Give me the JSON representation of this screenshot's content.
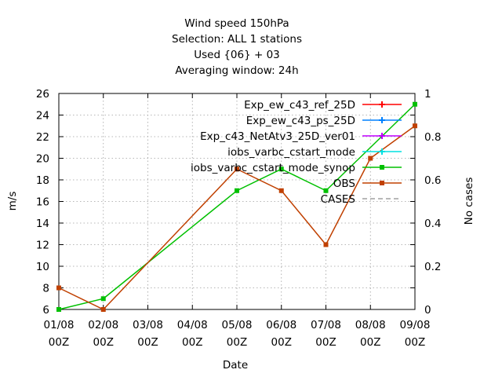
{
  "chart_data": {
    "type": "line",
    "title_lines": [
      "Wind speed 150hPa",
      "Selection: ALL      1 stations",
      "Used {06} + 03",
      "Averaging window: 24h"
    ],
    "xlabel": "Date",
    "ylabel": "m/s",
    "y2label": "No cases",
    "categories": [
      [
        "01/08",
        "00Z"
      ],
      [
        "02/08",
        "00Z"
      ],
      [
        "03/08",
        "00Z"
      ],
      [
        "04/08",
        "00Z"
      ],
      [
        "05/08",
        "00Z"
      ],
      [
        "06/08",
        "00Z"
      ],
      [
        "07/08",
        "00Z"
      ],
      [
        "08/08",
        "00Z"
      ],
      [
        "09/08",
        "00Z"
      ]
    ],
    "ylim": [
      6,
      26
    ],
    "yticks": [
      6,
      8,
      10,
      12,
      14,
      16,
      18,
      20,
      22,
      24,
      26
    ],
    "y2lim": [
      0,
      1
    ],
    "y2ticks": [
      "0",
      "0.2",
      "0.4",
      "0.6",
      "0.8",
      "1"
    ],
    "grid": true,
    "legend_position": "top-right",
    "series": [
      {
        "name": "Exp_ew_c43_ref_25D",
        "color": "#ff0000",
        "marker": "plus",
        "x": [],
        "values": []
      },
      {
        "name": "Exp_ew_c43_ps_25D",
        "color": "#0080ff",
        "marker": "plus",
        "x": [],
        "values": []
      },
      {
        "name": "Exp_c43_NetAtv3_25D_ver01",
        "color": "#c000ff",
        "marker": "plus",
        "x": [],
        "values": []
      },
      {
        "name": "iobs_varbc_cstart_mode",
        "color": "#00e0e0",
        "marker": "plus",
        "x": [],
        "values": []
      },
      {
        "name": "iobs_varbc_cstart_mode_synop",
        "color": "#00c000",
        "marker": "square",
        "x": [
          0,
          1,
          4,
          5,
          6,
          8
        ],
        "values": [
          6,
          7,
          17,
          19,
          17,
          25
        ]
      },
      {
        "name": "OBS",
        "color": "#c04000",
        "marker": "square",
        "x": [
          0,
          1,
          4,
          5,
          6,
          7,
          8
        ],
        "values": [
          8,
          6,
          19,
          17,
          12,
          20,
          23
        ]
      },
      {
        "name": "CASES",
        "color": "#a0a0a0",
        "marker": "none",
        "dashed": true,
        "x": [],
        "values": []
      }
    ]
  }
}
